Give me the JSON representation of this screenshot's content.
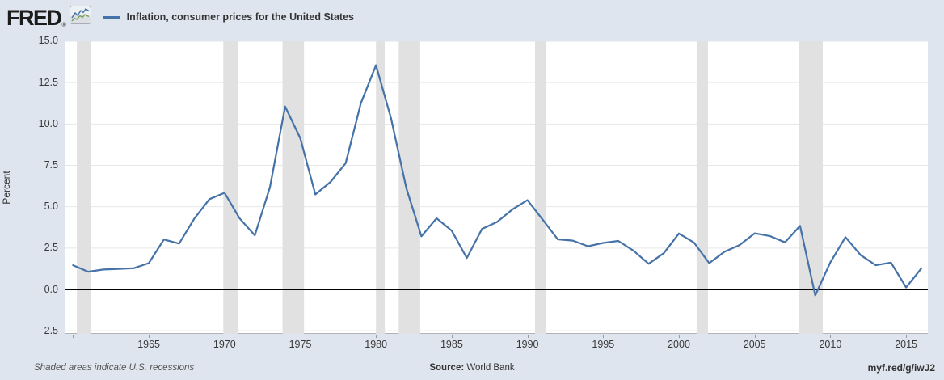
{
  "header": {
    "logo_text": "FRED",
    "logo_reg": "®",
    "title": "Inflation, consumer prices for the United States"
  },
  "footer": {
    "note": "Shaded areas indicate U.S. recessions",
    "source_label": "Source:",
    "source_value": "World Bank",
    "share_url": "myf.red/g/iwJ2"
  },
  "colors": {
    "background": "#dfe5ee",
    "plot_background": "#ffffff",
    "line": "#4572a7",
    "recession_band": "#e1e1e1",
    "grid": "#e7e7e7",
    "zero_line": "#000000",
    "axis_line": "#b3b3b3",
    "logo_icon_blue": "#4572a7",
    "logo_icon_green": "#7aa05c"
  },
  "chart_data": {
    "type": "line",
    "title": "Inflation, consumer prices for the United States",
    "series_name": "Inflation, consumer prices for the United States",
    "xlabel": "",
    "ylabel": "Percent",
    "ylim": [
      -2.5,
      15.0
    ],
    "xlim": [
      1959.5,
      2016.6
    ],
    "grid": "horizontal",
    "legend_position": "top",
    "x": [
      1960,
      1961,
      1962,
      1963,
      1964,
      1965,
      1966,
      1967,
      1968,
      1969,
      1970,
      1971,
      1972,
      1973,
      1974,
      1975,
      1976,
      1977,
      1978,
      1979,
      1980,
      1981,
      1982,
      1983,
      1984,
      1985,
      1986,
      1987,
      1988,
      1989,
      1990,
      1991,
      1992,
      1993,
      1994,
      1995,
      1996,
      1997,
      1998,
      1999,
      2000,
      2001,
      2002,
      2003,
      2004,
      2005,
      2006,
      2007,
      2008,
      2009,
      2010,
      2011,
      2012,
      2013,
      2014,
      2015,
      2016
    ],
    "values": [
      1.46,
      1.07,
      1.2,
      1.24,
      1.28,
      1.59,
      3.02,
      2.77,
      4.27,
      5.46,
      5.84,
      4.29,
      3.27,
      6.18,
      11.05,
      9.14,
      5.74,
      6.5,
      7.63,
      11.25,
      13.55,
      10.33,
      6.13,
      3.21,
      4.3,
      3.55,
      1.9,
      3.66,
      4.08,
      4.83,
      5.4,
      4.23,
      3.03,
      2.95,
      2.61,
      2.81,
      2.93,
      2.34,
      1.55,
      2.19,
      3.38,
      2.83,
      1.59,
      2.27,
      2.68,
      3.39,
      3.23,
      2.85,
      3.84,
      -0.36,
      1.64,
      3.16,
      2.07,
      1.46,
      1.62,
      0.12,
      1.26
    ],
    "y_ticks": [
      15.0,
      12.5,
      10.0,
      7.5,
      5.0,
      2.5,
      0.0,
      -2.5
    ],
    "x_ticks": [
      1965,
      1970,
      1975,
      1980,
      1985,
      1990,
      1995,
      2000,
      2005,
      2010,
      2015
    ],
    "x_tick_marks": [
      1960,
      1965,
      1970,
      1975,
      1980,
      1985,
      1990,
      1995,
      2000,
      2005,
      2010,
      2015
    ],
    "recessions": [
      [
        1960.25,
        1961.17
      ],
      [
        1969.92,
        1970.92
      ],
      [
        1973.83,
        1975.25
      ],
      [
        1980.0,
        1980.58
      ],
      [
        1981.5,
        1982.92
      ],
      [
        1990.5,
        1991.25
      ],
      [
        2001.17,
        2001.92
      ],
      [
        2007.92,
        2009.5
      ]
    ]
  }
}
